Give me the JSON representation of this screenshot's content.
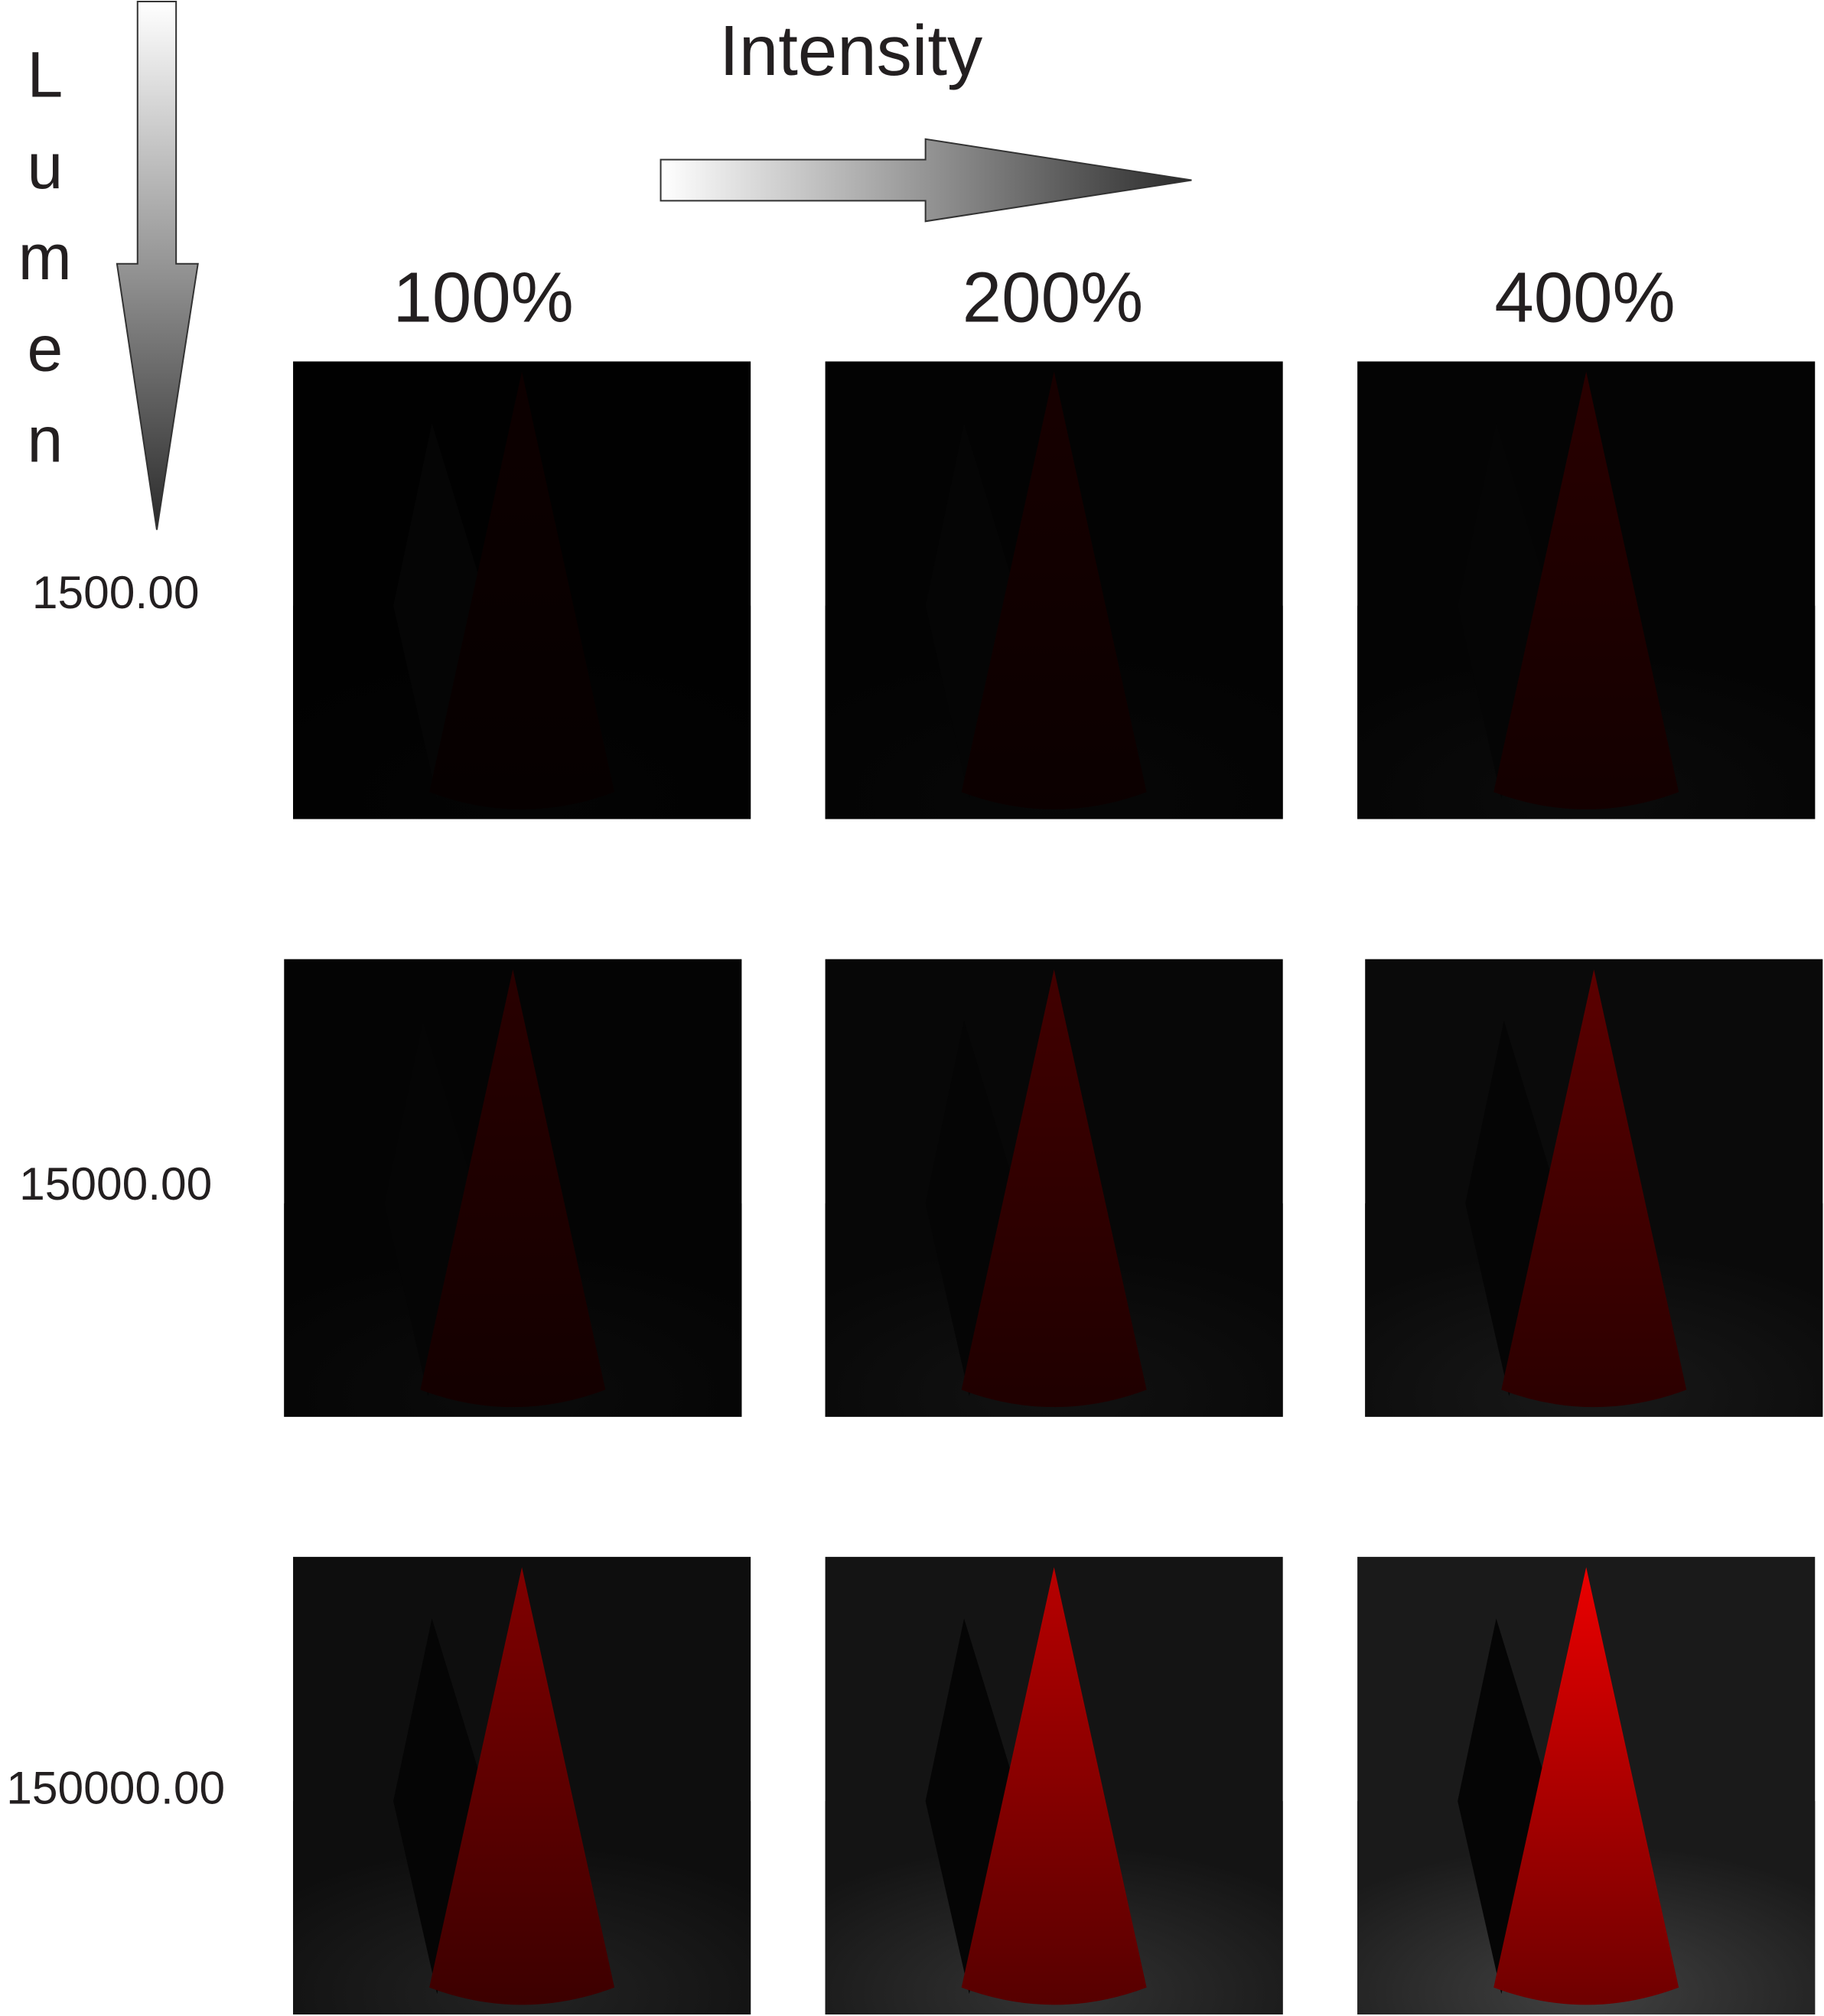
{
  "header": {
    "title": "Intensity",
    "vertical_label": "Lumen"
  },
  "columns": [
    "100%",
    "200%",
    "400%"
  ],
  "rows": [
    "1500.00",
    "15000.00",
    "150000.00"
  ]
}
